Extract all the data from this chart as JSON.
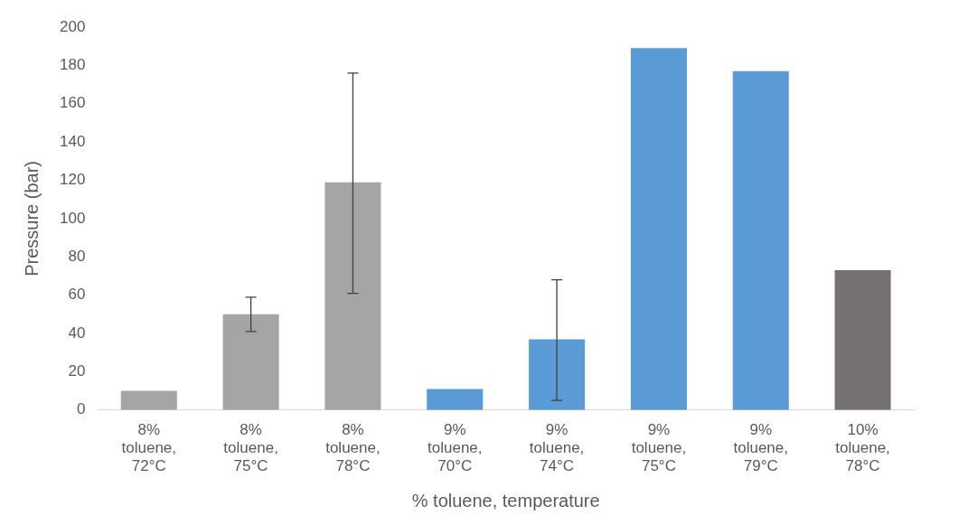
{
  "chart_data": {
    "type": "bar",
    "xlabel": "% toluene, temperature",
    "ylabel": "Pressure (bar)",
    "categories": [
      "8% toluene, 72°C",
      "8% toluene, 75°C",
      "8% toluene, 78°C",
      "9% toluene, 70°C",
      "9% toluene, 74°C",
      "9% toluene, 75°C",
      "9% toluene, 79°C",
      "10% toluene, 78°C"
    ],
    "values": [
      10,
      50,
      119,
      11,
      37,
      189,
      177,
      73
    ],
    "colors": [
      "#a5a5a5",
      "#a5a5a5",
      "#a5a5a5",
      "#5b9bd5",
      "#5b9bd5",
      "#5b9bd5",
      "#5b9bd5",
      "#767171"
    ],
    "errors": [
      null,
      [
        41,
        59
      ],
      [
        61,
        176
      ],
      null,
      [
        5,
        68
      ],
      null,
      null,
      null
    ],
    "ylim": [
      0,
      200
    ],
    "yticks": [
      0,
      20,
      40,
      60,
      80,
      100,
      120,
      140,
      160,
      180,
      200
    ],
    "grid": false,
    "legend": false
  }
}
